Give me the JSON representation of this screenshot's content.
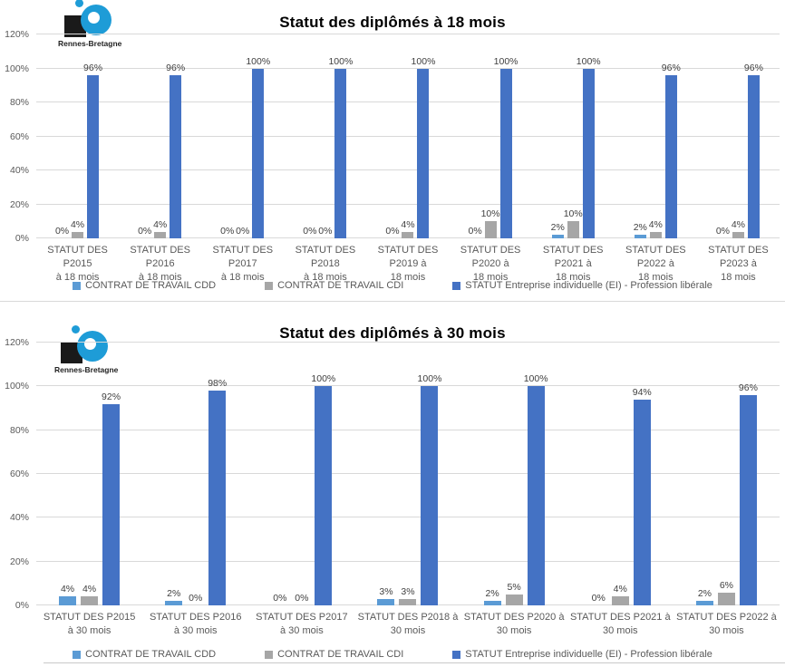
{
  "logo": {
    "text": "Rennes-Bretagne"
  },
  "colors": {
    "cdd": "#5B9BD5",
    "cdi": "#A6A6A6",
    "ei": "#4472C4",
    "gridline": "#D9D9D9",
    "logo_blue": "#1E9CD7",
    "logo_black": "#1A1A1A"
  },
  "chart_data": [
    {
      "type": "bar",
      "title": "Statut des diplômés à 18 mois",
      "xlabel": "",
      "ylabel": "",
      "ylim": [
        0,
        120
      ],
      "yticks": [
        0,
        20,
        40,
        60,
        80,
        100,
        120
      ],
      "ytick_labels": [
        "0%",
        "20%",
        "40%",
        "60%",
        "80%",
        "100%",
        "120%"
      ],
      "grid": true,
      "legend_position": "bottom",
      "data_labels": "outside-end",
      "categories": [
        [
          "STATUT DES P2015",
          "à 18 mois"
        ],
        [
          "STATUT DES P2016",
          "à 18 mois"
        ],
        [
          "STATUT DES P2017",
          "à 18 mois"
        ],
        [
          "STATUT DES P2018",
          "à 18 mois"
        ],
        [
          "STATUT DES P2019 à",
          "18 mois"
        ],
        [
          "STATUT DES P2020 à",
          "18 mois"
        ],
        [
          "STATUT DES P2021 à",
          "18 mois"
        ],
        [
          "STATUT DES P2022 à",
          "18 mois"
        ],
        [
          "STATUT DES P2023 à",
          "18 mois"
        ]
      ],
      "series": [
        {
          "id": "cdd",
          "name": "CONTRAT DE TRAVAIL  CDD",
          "values": [
            0,
            0,
            0,
            0,
            0,
            0,
            2,
            2,
            0
          ]
        },
        {
          "id": "cdi",
          "name": "CONTRAT DE TRAVAIL  CDI",
          "values": [
            4,
            4,
            0,
            0,
            4,
            10,
            10,
            4,
            4
          ]
        },
        {
          "id": "ei",
          "name": "STATUT Entreprise individuelle (EI) - Profession libérale",
          "values": [
            96,
            96,
            100,
            100,
            100,
            100,
            100,
            96,
            96
          ]
        }
      ]
    },
    {
      "type": "bar",
      "title": "Statut des diplômés à 30 mois",
      "xlabel": "",
      "ylabel": "",
      "ylim": [
        0,
        120
      ],
      "yticks": [
        0,
        20,
        40,
        60,
        80,
        100,
        120
      ],
      "ytick_labels": [
        "0%",
        "20%",
        "40%",
        "60%",
        "80%",
        "100%",
        "120%"
      ],
      "grid": true,
      "legend_position": "bottom",
      "data_labels": "outside-end",
      "categories": [
        [
          "STATUT DES P2015",
          "à 30 mois"
        ],
        [
          "STATUT DES P2016",
          "à 30 mois"
        ],
        [
          "STATUT DES P2017",
          "à 30 mois"
        ],
        [
          "STATUT DES P2018 à",
          "30 mois"
        ],
        [
          "STATUT DES P2020 à",
          "30 mois"
        ],
        [
          "STATUT DES P2021 à",
          "30 mois"
        ],
        [
          "STATUT DES P2022 à",
          "30 mois"
        ]
      ],
      "series": [
        {
          "id": "cdd",
          "name": "CONTRAT DE TRAVAIL  CDD",
          "values": [
            4,
            2,
            0,
            3,
            2,
            0,
            2
          ]
        },
        {
          "id": "cdi",
          "name": "CONTRAT DE TRAVAIL  CDI",
          "values": [
            4,
            0,
            0,
            3,
            5,
            4,
            6
          ]
        },
        {
          "id": "ei",
          "name": "STATUT Entreprise individuelle (EI) - Profession libérale",
          "values": [
            92,
            98,
            100,
            100,
            100,
            94,
            96
          ]
        }
      ]
    }
  ]
}
